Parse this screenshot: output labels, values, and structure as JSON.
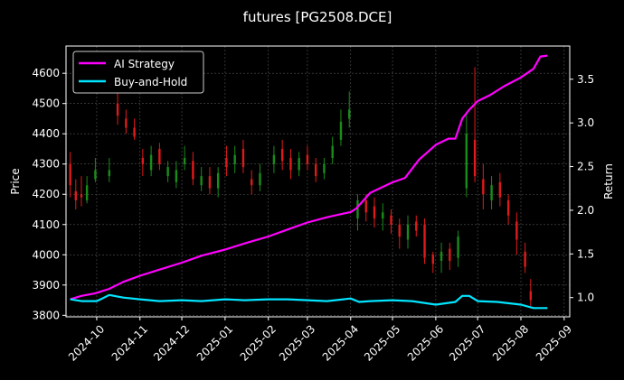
{
  "chart_data": {
    "type": "line",
    "title": "futures [PG2508.DCE]",
    "ylabel_left": "Price",
    "ylabel_right": "Return",
    "ylim_left": [
      3795,
      4690
    ],
    "ylim_right": [
      0.78,
      3.88
    ],
    "x_ticks": [
      "2024-10",
      "2024-11",
      "2024-12",
      "2025-01",
      "2025-02",
      "2025-03",
      "2025-04",
      "2025-05",
      "2025-06",
      "2025-07",
      "2025-08",
      "2025-09"
    ],
    "left_ticks": [
      3800,
      3900,
      4000,
      4100,
      4200,
      4300,
      4400,
      4500,
      4600
    ],
    "right_ticks": [
      1.0,
      1.5,
      2.0,
      2.5,
      3.0,
      3.5
    ],
    "legend_position": "top-left",
    "grid": true,
    "colors": {
      "ai_strategy": "#ff00ff",
      "buy_and_hold": "#00e5ff",
      "up": "#1a8c1a",
      "down": "#e01a1a"
    },
    "series": [
      {
        "name": "AI Strategy",
        "axis": "right",
        "x": [
          "2024-09-12",
          "2024-09-20",
          "2024-09-30",
          "2024-10-10",
          "2024-10-20",
          "2024-11-01",
          "2024-11-15",
          "2024-12-01",
          "2024-12-15",
          "2025-01-01",
          "2025-01-15",
          "2025-02-01",
          "2025-02-15",
          "2025-03-01",
          "2025-03-15",
          "2025-04-01",
          "2025-04-05",
          "2025-04-15",
          "2025-05-01",
          "2025-05-10",
          "2025-05-20",
          "2025-06-01",
          "2025-06-10",
          "2025-06-15",
          "2025-06-20",
          "2025-06-25",
          "2025-07-01",
          "2025-07-10",
          "2025-07-20",
          "2025-08-01",
          "2025-08-10",
          "2025-08-15",
          "2025-08-20"
        ],
        "values": [
          0.98,
          1.02,
          1.05,
          1.1,
          1.18,
          1.25,
          1.32,
          1.4,
          1.48,
          1.55,
          1.62,
          1.7,
          1.78,
          1.86,
          1.92,
          1.98,
          2.02,
          2.2,
          2.32,
          2.37,
          2.58,
          2.75,
          2.82,
          2.82,
          3.05,
          3.15,
          3.25,
          3.32,
          3.42,
          3.52,
          3.62,
          3.76,
          3.77
        ]
      },
      {
        "name": "Buy-and-Hold",
        "axis": "right",
        "x": [
          "2024-09-12",
          "2024-09-20",
          "2024-10-01",
          "2024-10-05",
          "2024-10-10",
          "2024-10-20",
          "2024-11-01",
          "2024-11-15",
          "2024-12-01",
          "2024-12-15",
          "2025-01-01",
          "2025-01-15",
          "2025-02-01",
          "2025-02-15",
          "2025-03-01",
          "2025-03-15",
          "2025-04-01",
          "2025-04-07",
          "2025-04-15",
          "2025-05-01",
          "2025-05-15",
          "2025-06-01",
          "2025-06-15",
          "2025-06-20",
          "2025-06-25",
          "2025-07-01",
          "2025-07-15",
          "2025-08-01",
          "2025-08-10",
          "2025-08-20"
        ],
        "values": [
          0.98,
          0.96,
          0.96,
          0.99,
          1.03,
          1.0,
          0.98,
          0.96,
          0.97,
          0.96,
          0.98,
          0.97,
          0.98,
          0.98,
          0.97,
          0.96,
          0.99,
          0.95,
          0.96,
          0.97,
          0.96,
          0.92,
          0.95,
          1.02,
          1.02,
          0.96,
          0.95,
          0.92,
          0.88,
          0.88
        ]
      }
    ],
    "candles": {
      "axis": "left",
      "x": [
        "2024-09-12",
        "2024-09-16",
        "2024-09-20",
        "2024-09-24",
        "2024-09-30",
        "2024-10-10",
        "2024-10-16",
        "2024-10-22",
        "2024-10-28",
        "2024-11-03",
        "2024-11-09",
        "2024-11-15",
        "2024-11-21",
        "2024-11-27",
        "2024-12-03",
        "2024-12-09",
        "2024-12-15",
        "2024-12-21",
        "2024-12-27",
        "2025-01-02",
        "2025-01-08",
        "2025-01-14",
        "2025-01-20",
        "2025-01-26",
        "2025-02-05",
        "2025-02-11",
        "2025-02-17",
        "2025-02-23",
        "2025-03-01",
        "2025-03-07",
        "2025-03-13",
        "2025-03-19",
        "2025-03-25",
        "2025-03-31",
        "2025-04-06",
        "2025-04-12",
        "2025-04-18",
        "2025-04-24",
        "2025-04-30",
        "2025-05-06",
        "2025-05-12",
        "2025-05-18",
        "2025-05-24",
        "2025-05-30",
        "2025-06-05",
        "2025-06-11",
        "2025-06-17",
        "2025-06-23",
        "2025-06-29",
        "2025-07-05",
        "2025-07-11",
        "2025-07-17",
        "2025-07-23",
        "2025-07-29",
        "2025-08-04",
        "2025-08-08"
      ],
      "open": [
        4300,
        4210,
        4200,
        4180,
        4250,
        4260,
        4500,
        4450,
        4420,
        4320,
        4280,
        4350,
        4260,
        4240,
        4300,
        4310,
        4230,
        4260,
        4220,
        4320,
        4300,
        4350,
        4250,
        4230,
        4300,
        4350,
        4320,
        4280,
        4330,
        4300,
        4270,
        4320,
        4380,
        4450,
        4120,
        4180,
        4160,
        4120,
        4130,
        4100,
        4050,
        4110,
        4100,
        4000,
        3980,
        4020,
        3990,
        4220,
        4380,
        4250,
        4180,
        4240,
        4180,
        4110,
        4010,
        3880
      ],
      "close": [
        4230,
        4180,
        4190,
        4230,
        4280,
        4280,
        4460,
        4420,
        4390,
        4300,
        4330,
        4300,
        4290,
        4280,
        4320,
        4250,
        4260,
        4220,
        4270,
        4290,
        4330,
        4290,
        4230,
        4270,
        4330,
        4310,
        4280,
        4320,
        4300,
        4260,
        4300,
        4360,
        4440,
        4480,
        4180,
        4140,
        4120,
        4140,
        4100,
        4060,
        4100,
        4080,
        3990,
        3970,
        4010,
        3980,
        4060,
        4400,
        4260,
        4200,
        4230,
        4190,
        4130,
        4050,
        3960,
        3850
      ],
      "high": [
        4340,
        4250,
        4260,
        4260,
        4320,
        4320,
        4560,
        4480,
        4450,
        4350,
        4360,
        4370,
        4310,
        4310,
        4360,
        4340,
        4290,
        4290,
        4290,
        4360,
        4360,
        4380,
        4280,
        4300,
        4360,
        4380,
        4350,
        4340,
        4360,
        4320,
        4320,
        4390,
        4480,
        4540,
        4200,
        4200,
        4190,
        4170,
        4150,
        4120,
        4130,
        4130,
        4120,
        4010,
        4040,
        4040,
        4080,
        4470,
        4620,
        4300,
        4260,
        4270,
        4200,
        4140,
        4040,
        3920
      ],
      "low": [
        4190,
        4150,
        4160,
        4170,
        4240,
        4240,
        4430,
        4400,
        4380,
        4260,
        4260,
        4280,
        4240,
        4220,
        4280,
        4230,
        4210,
        4200,
        4190,
        4260,
        4270,
        4270,
        4200,
        4210,
        4270,
        4280,
        4250,
        4260,
        4280,
        4240,
        4250,
        4300,
        4360,
        4420,
        4080,
        4110,
        4090,
        4080,
        4070,
        4020,
        4020,
        4060,
        3970,
        3940,
        3940,
        3950,
        3960,
        4190,
        4240,
        4150,
        4150,
        4160,
        4100,
        4000,
        3940,
        3830
      ]
    }
  }
}
